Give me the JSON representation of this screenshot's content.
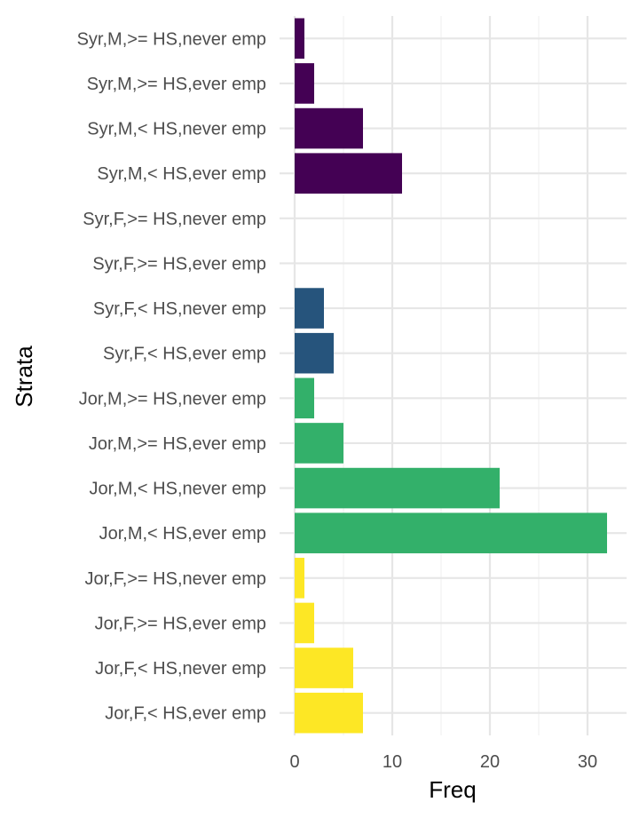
{
  "chart_data": {
    "type": "bar",
    "orientation": "horizontal",
    "xlabel": "Freq",
    "ylabel": "Strata",
    "xlim": [
      0,
      33
    ],
    "x_ticks": [
      0,
      10,
      20,
      30
    ],
    "grid": true,
    "legend": "none",
    "colors": {
      "Syr,M": "#440154",
      "Syr,F": "#26547C",
      "Jor,M": "#33B06A",
      "Jor,F": "#FDE725"
    },
    "bars": [
      {
        "label": "Syr,M,>= HS,never emp",
        "value": 1,
        "group": "Syr,M"
      },
      {
        "label": "Syr,M,>= HS,ever emp",
        "value": 2,
        "group": "Syr,M"
      },
      {
        "label": "Syr,M,< HS,never emp",
        "value": 7,
        "group": "Syr,M"
      },
      {
        "label": "Syr,M,< HS,ever emp",
        "value": 11,
        "group": "Syr,M"
      },
      {
        "label": "Syr,F,>= HS,never emp",
        "value": 0,
        "group": "Syr,F"
      },
      {
        "label": "Syr,F,>= HS,ever emp",
        "value": 0,
        "group": "Syr,F"
      },
      {
        "label": "Syr,F,< HS,never emp",
        "value": 3,
        "group": "Syr,F"
      },
      {
        "label": "Syr,F,< HS,ever emp",
        "value": 4,
        "group": "Syr,F"
      },
      {
        "label": "Jor,M,>= HS,never emp",
        "value": 2,
        "group": "Jor,M"
      },
      {
        "label": "Jor,M,>= HS,ever emp",
        "value": 5,
        "group": "Jor,M"
      },
      {
        "label": "Jor,M,< HS,never emp",
        "value": 21,
        "group": "Jor,M"
      },
      {
        "label": "Jor,M,< HS,ever emp",
        "value": 32,
        "group": "Jor,M"
      },
      {
        "label": "Jor,F,>= HS,never emp",
        "value": 1,
        "group": "Jor,F"
      },
      {
        "label": "Jor,F,>= HS,ever emp",
        "value": 2,
        "group": "Jor,F"
      },
      {
        "label": "Jor,F,< HS,never emp",
        "value": 6,
        "group": "Jor,F"
      },
      {
        "label": "Jor,F,< HS,ever emp",
        "value": 7,
        "group": "Jor,F"
      }
    ]
  }
}
